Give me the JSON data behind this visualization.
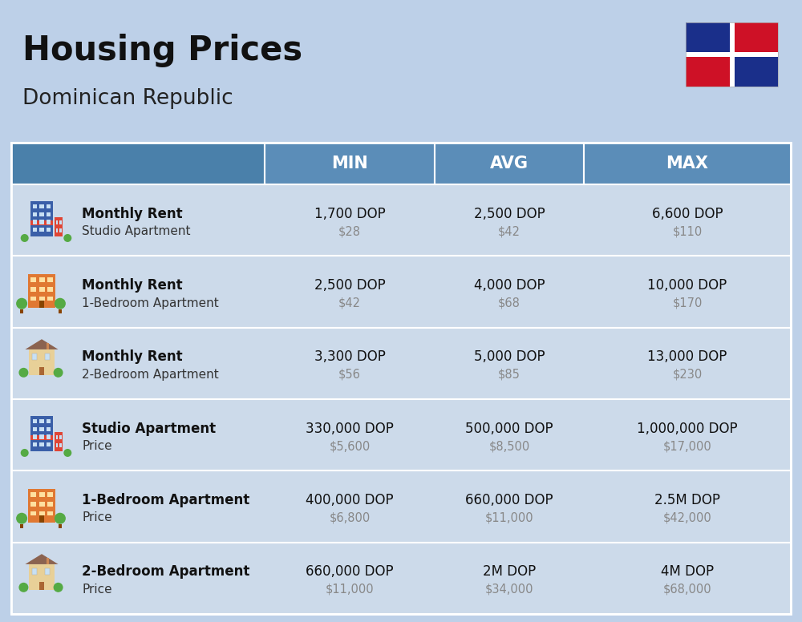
{
  "title": "Housing Prices",
  "subtitle": "Dominican Republic",
  "background_color": "#bdd0e8",
  "header_bg_color": "#5b8db8",
  "header_text_color": "#ffffff",
  "row_bg_color_light": "#ccdaea",
  "row_bg_color_dark": "#c0cfe0",
  "divider_color": "#ffffff",
  "col_headers": [
    "MIN",
    "AVG",
    "MAX"
  ],
  "rows": [
    {
      "label_bold": "Monthly Rent",
      "label_sub": "Studio Apartment",
      "min_main": "1,700 DOP",
      "min_sub": "$28",
      "avg_main": "2,500 DOP",
      "avg_sub": "$42",
      "max_main": "6,600 DOP",
      "max_sub": "$110",
      "icon_type": "blue_office"
    },
    {
      "label_bold": "Monthly Rent",
      "label_sub": "1-Bedroom Apartment",
      "min_main": "2,500 DOP",
      "min_sub": "$42",
      "avg_main": "4,000 DOP",
      "avg_sub": "$68",
      "max_main": "10,000 DOP",
      "max_sub": "$170",
      "icon_type": "orange_apt"
    },
    {
      "label_bold": "Monthly Rent",
      "label_sub": "2-Bedroom Apartment",
      "min_main": "3,300 DOP",
      "min_sub": "$56",
      "avg_main": "5,000 DOP",
      "avg_sub": "$85",
      "max_main": "13,000 DOP",
      "max_sub": "$230",
      "icon_type": "beige_house"
    },
    {
      "label_bold": "Studio Apartment",
      "label_sub": "Price",
      "min_main": "330,000 DOP",
      "min_sub": "$5,600",
      "avg_main": "500,000 DOP",
      "avg_sub": "$8,500",
      "max_main": "1,000,000 DOP",
      "max_sub": "$17,000",
      "icon_type": "blue_office"
    },
    {
      "label_bold": "1-Bedroom Apartment",
      "label_sub": "Price",
      "min_main": "400,000 DOP",
      "min_sub": "$6,800",
      "avg_main": "660,000 DOP",
      "avg_sub": "$11,000",
      "max_main": "2.5M DOP",
      "max_sub": "$42,000",
      "icon_type": "orange_apt"
    },
    {
      "label_bold": "2-Bedroom Apartment",
      "label_sub": "Price",
      "min_main": "660,000 DOP",
      "min_sub": "$11,000",
      "avg_main": "2M DOP",
      "avg_sub": "$34,000",
      "max_main": "4M DOP",
      "max_sub": "$68,000",
      "icon_type": "beige_house"
    }
  ],
  "flag_colors": {
    "blue": "#1a2f8a",
    "red": "#ce1126",
    "white": "#ffffff"
  }
}
